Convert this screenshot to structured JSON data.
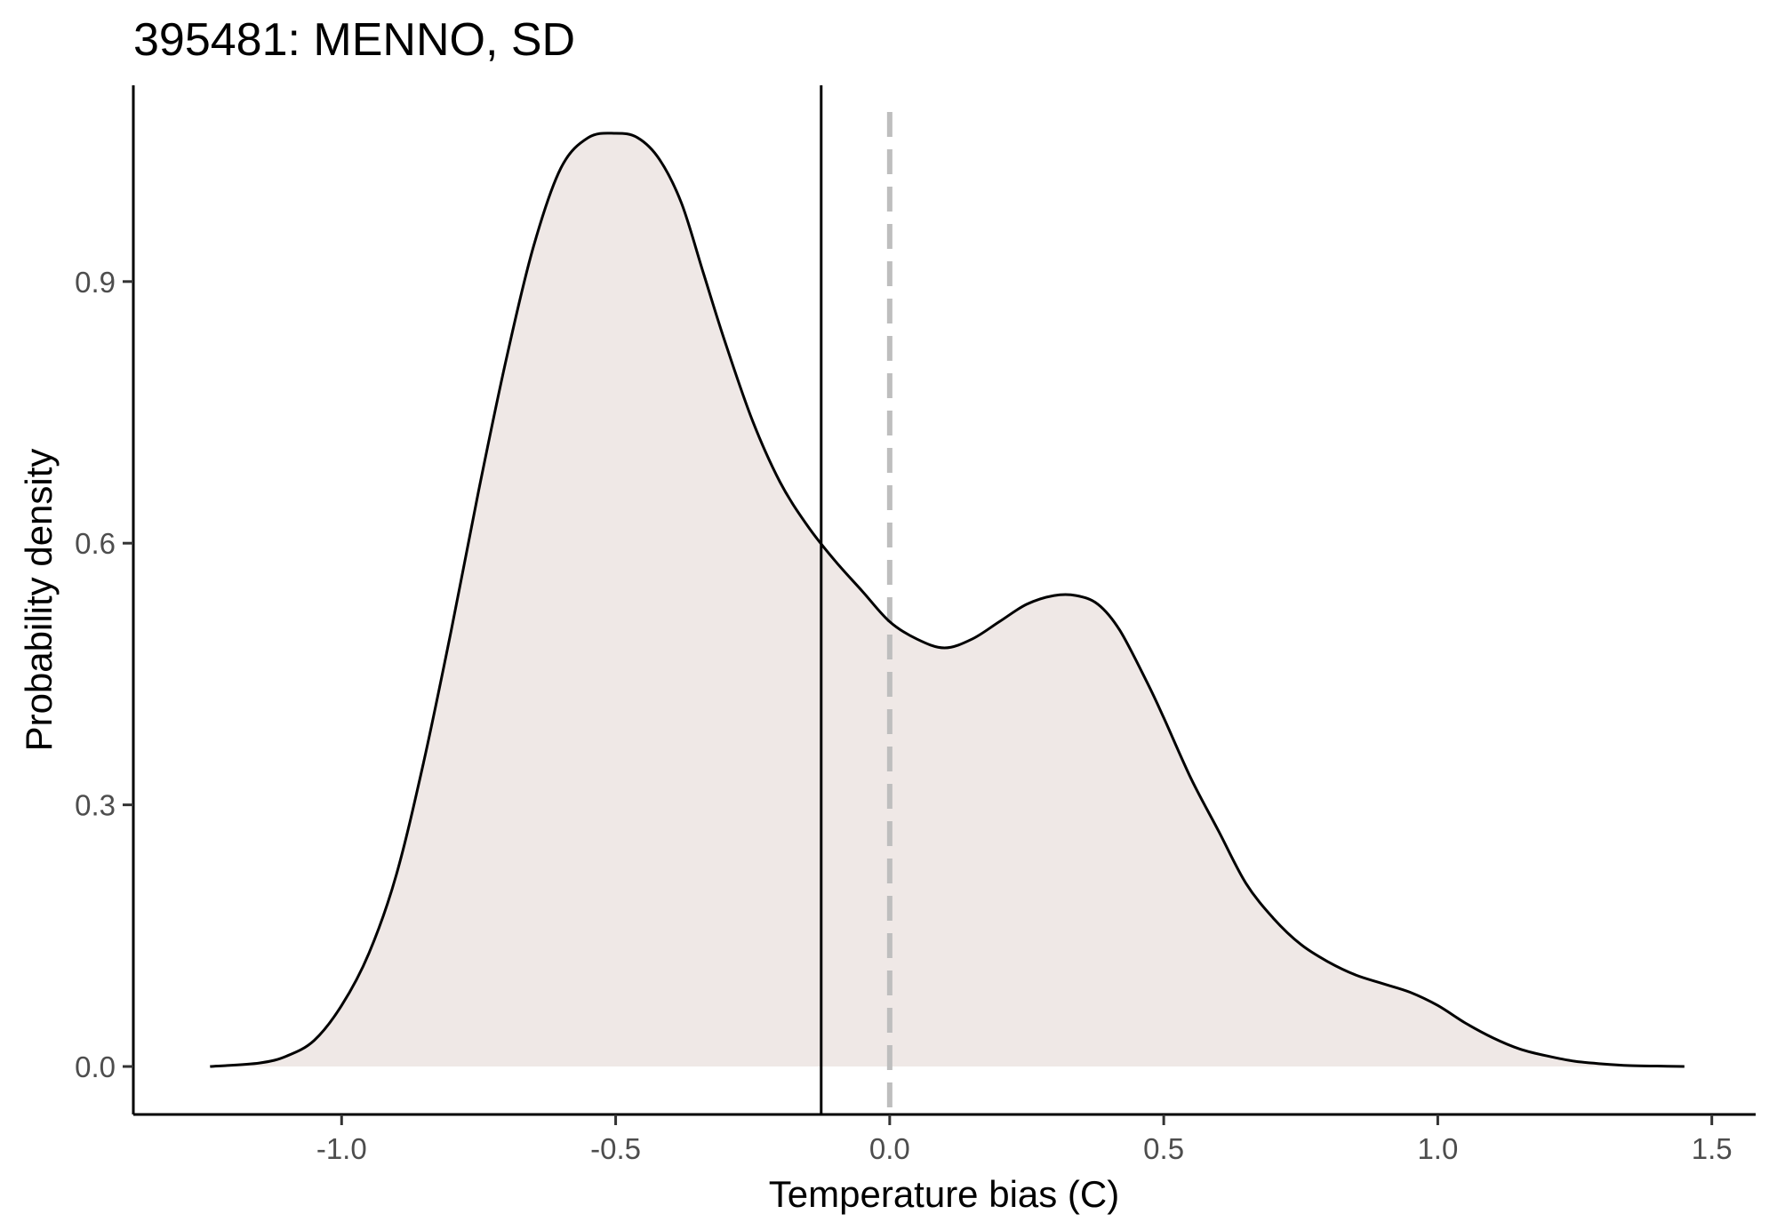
{
  "chart_data": {
    "type": "area",
    "title": "395481: MENNO, SD",
    "xlabel": "Temperature bias (C)",
    "ylabel": "Probability density",
    "xlim": [
      -1.38,
      1.58
    ],
    "ylim": [
      -0.055,
      1.125
    ],
    "x_ticks": [
      -1.0,
      -0.5,
      0.0,
      0.5,
      1.0,
      1.5
    ],
    "x_tick_labels": [
      "-1.0",
      "-0.5",
      "0.0",
      "0.5",
      "1.0",
      "1.5"
    ],
    "y_ticks": [
      0.0,
      0.3,
      0.6,
      0.9
    ],
    "y_tick_labels": [
      "0.0",
      "0.3",
      "0.6",
      "0.9"
    ],
    "grid": false,
    "density": {
      "x": [
        -1.24,
        -1.15,
        -1.1,
        -1.05,
        -1.0,
        -0.95,
        -0.9,
        -0.85,
        -0.8,
        -0.75,
        -0.7,
        -0.65,
        -0.6,
        -0.55,
        -0.5,
        -0.46,
        -0.42,
        -0.38,
        -0.34,
        -0.3,
        -0.25,
        -0.2,
        -0.15,
        -0.1,
        -0.05,
        0.0,
        0.05,
        0.1,
        0.15,
        0.2,
        0.25,
        0.3,
        0.34,
        0.38,
        0.42,
        0.47,
        0.5,
        0.55,
        0.6,
        0.65,
        0.7,
        0.75,
        0.8,
        0.85,
        0.9,
        0.95,
        1.0,
        1.05,
        1.1,
        1.15,
        1.2,
        1.25,
        1.3,
        1.35,
        1.4,
        1.45
      ],
      "y": [
        0.0,
        0.004,
        0.012,
        0.03,
        0.07,
        0.13,
        0.22,
        0.35,
        0.5,
        0.66,
        0.81,
        0.94,
        1.03,
        1.065,
        1.07,
        1.065,
        1.04,
        0.99,
        0.91,
        0.83,
        0.74,
        0.67,
        0.62,
        0.58,
        0.545,
        0.51,
        0.49,
        0.48,
        0.49,
        0.51,
        0.53,
        0.54,
        0.54,
        0.53,
        0.5,
        0.44,
        0.4,
        0.33,
        0.27,
        0.21,
        0.17,
        0.14,
        0.12,
        0.105,
        0.095,
        0.085,
        0.07,
        0.05,
        0.033,
        0.02,
        0.012,
        0.006,
        0.003,
        0.001,
        0.0005,
        0.0
      ]
    },
    "reference_lines": [
      {
        "x": -0.125,
        "style": "solid",
        "color": "#000000"
      },
      {
        "x": 0.0,
        "style": "dashed",
        "color": "#bebebe"
      }
    ],
    "fill_color": "#efe8e6",
    "line_color": "#000000"
  }
}
